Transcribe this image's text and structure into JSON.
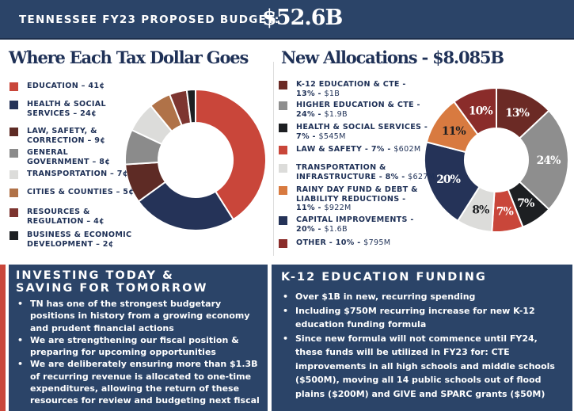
{
  "header": {
    "label": "TENNESSEE FY23 PROPOSED BUDGET:",
    "amount": "$52.6B"
  },
  "left_title": "Where Each Tax Dollar Goes",
  "right_title": "New Allocations - $8.085B",
  "chart_data": [
    {
      "type": "pie",
      "donut": true,
      "title": "Where Each Tax Dollar Goes",
      "unit": "¢",
      "categories": [
        "Education",
        "Health & Social Services",
        "Law, Safety, & Correction",
        "General Government",
        "Transportation",
        "Cities & Counties",
        "Resources & Regulation",
        "Business & Economic Development"
      ],
      "values": [
        41,
        24,
        9,
        8,
        7,
        5,
        4,
        2
      ],
      "colors": [
        "#c9463a",
        "#253358",
        "#5e2b25",
        "#8b8b8b",
        "#dcdcda",
        "#b07248",
        "#7d3530",
        "#1d1f22"
      ],
      "legend_labels": [
        [
          "EDUCATION – 41¢"
        ],
        [
          "HEALTH & SOCIAL",
          "SERVICES – 24¢"
        ],
        [
          "LAW, SAFETY, &",
          "CORRECTION – 9¢"
        ],
        [
          "GENERAL",
          "GOVERNMENT – 8¢"
        ],
        [
          "TRANSPORTATION – 7¢"
        ],
        [
          "CITIES & COUNTIES – 5¢"
        ],
        [
          "RESOURCES &",
          "REGULATION – 4¢"
        ],
        [
          "BUSINESS & ECONOMIC",
          "DEVELOPMENT – 2¢"
        ]
      ],
      "legend_placement": "left"
    },
    {
      "type": "pie",
      "donut": true,
      "title": "New Allocations - $8.085B",
      "unit": "%",
      "categories": [
        "K-12 Education & CTE",
        "Higher Education & CTE",
        "Health & Social Services",
        "Law & Safety",
        "Transportation & Infrastructure",
        "Rainy Day Fund & Debt & Liability Reductions",
        "Capital Improvements",
        "Other"
      ],
      "values": [
        13,
        24,
        7,
        7,
        8,
        11,
        20,
        10
      ],
      "slice_order": [
        0,
        1,
        2,
        3,
        4,
        6,
        5,
        7
      ],
      "data_labels": [
        "13%",
        "24%",
        "7%",
        "7%",
        "8%",
        "11%",
        "20%",
        "10%"
      ],
      "colors": [
        "#6b2a25",
        "#8e8e8e",
        "#1d1f22",
        "#c9463a",
        "#dcdcda",
        "#d87a40",
        "#253358",
        "#8a2c2a"
      ],
      "legend_labels": [
        [
          "K-12 EDUCATION & CTE -",
          "13% - ",
          "$1B"
        ],
        [
          "HIGHER EDUCATION & CTE -",
          "24% - ",
          "$1.9B"
        ],
        [
          "HEALTH & SOCIAL SERVICES -",
          "7% - ",
          "$545M"
        ],
        [
          "",
          "LAW & SAFETY - 7% - ",
          "$602M"
        ],
        [
          "TRANSPORTATION &",
          "INFRASTRUCTURE - 8% - ",
          "$627M"
        ],
        [
          "RAINY DAY FUND & DEBT &\nLIABILITY REDUCTIONS -",
          "11% - ",
          "$922M"
        ],
        [
          "CAPITAL IMPROVEMENTS -",
          "20% - ",
          "$1.6B"
        ],
        [
          "",
          "OTHER - 10% - ",
          "$795M"
        ]
      ],
      "legend_placement": "left"
    }
  ],
  "investing": {
    "title_line1": "INVESTING TODAY &",
    "title_line2": "SAVING FOR TOMORROW",
    "bullets": [
      "TN has one of the strongest budgetary positions in history from a growing economy and prudent financial actions",
      "We are strengthening our fiscal position & preparing for upcoming opportunities",
      "We are deliberately ensuring more than $1.3B of recurring revenue is allocated to one-time expenditures, allowing the return of these resources for review and budgeting next fiscal year"
    ]
  },
  "k12": {
    "title": "K-12 EDUCATION FUNDING",
    "bullets": [
      "Over $1B in new, recurring spending",
      "Including $750M recurring increase for new K-12 education funding formula",
      "Since new formula will not commence until FY24, these funds will be utilized in FY23 for: CTE improvements in all high schools and middle schools ($500M), moving all 14 public schools out of flood plains ($200M) and GIVE and SPARC grants ($50M)"
    ]
  }
}
